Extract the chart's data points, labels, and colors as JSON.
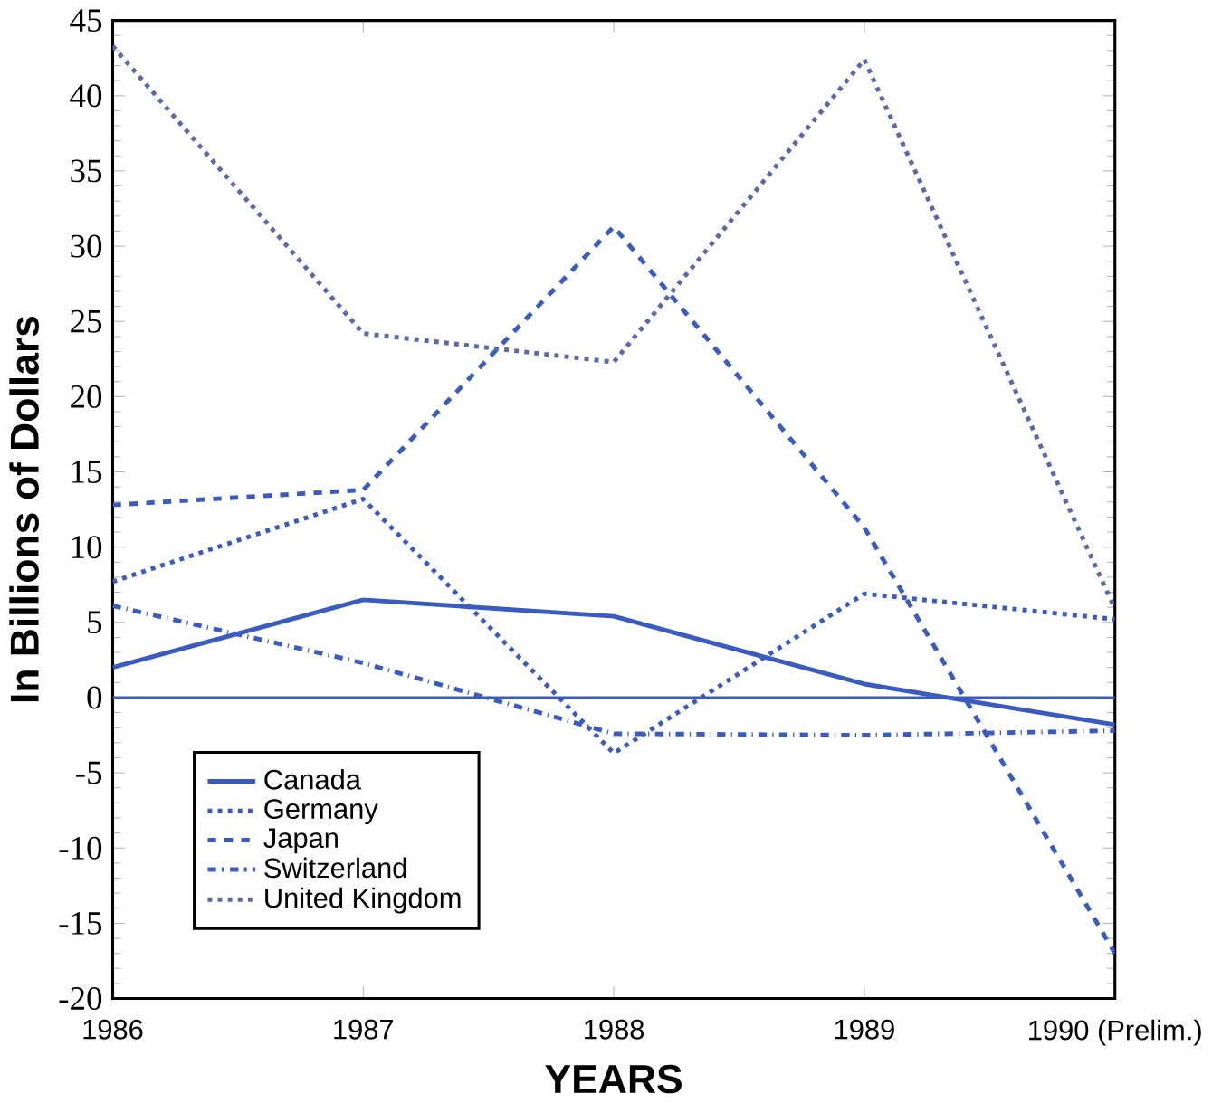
{
  "chart_data": {
    "type": "line",
    "xlabel": "YEARS",
    "ylabel": "In Billions of Dollars",
    "categories": [
      "1986",
      "1987",
      "1988",
      "1989",
      "1990 (Prelim.)"
    ],
    "series": [
      {
        "name": "Canada",
        "color": "#3a5cc0",
        "line_style": "solid",
        "values": [
          2.0,
          6.5,
          5.4,
          0.9,
          -1.8
        ]
      },
      {
        "name": "Germany",
        "color": "#3a5cc0",
        "line_style": "dotted",
        "values": [
          7.7,
          13.2,
          -3.7,
          6.9,
          5.2
        ]
      },
      {
        "name": "Japan",
        "color": "#3a5cc0",
        "line_style": "dashed",
        "values": [
          12.8,
          13.8,
          31.3,
          11.3,
          -17.0
        ]
      },
      {
        "name": "Switzerland",
        "color": "#3a5cc0",
        "line_style": "dashdot",
        "values": [
          6.1,
          2.3,
          -2.4,
          -2.5,
          -2.2
        ]
      },
      {
        "name": "United Kingdom",
        "color": "#5a6aa8",
        "line_style": "dotted",
        "values": [
          43.3,
          24.2,
          22.3,
          42.4,
          5.9
        ]
      }
    ],
    "ylim": [
      -20,
      45
    ],
    "yticks": [
      -20,
      -15,
      -10,
      -5,
      0,
      5,
      10,
      15,
      20,
      25,
      30,
      35,
      40,
      45
    ],
    "ref_lines": [
      {
        "axis": "y",
        "value": 0,
        "color": "#3a5cc0"
      }
    ],
    "legend": "bottom left",
    "grid": false,
    "marker": "none"
  }
}
